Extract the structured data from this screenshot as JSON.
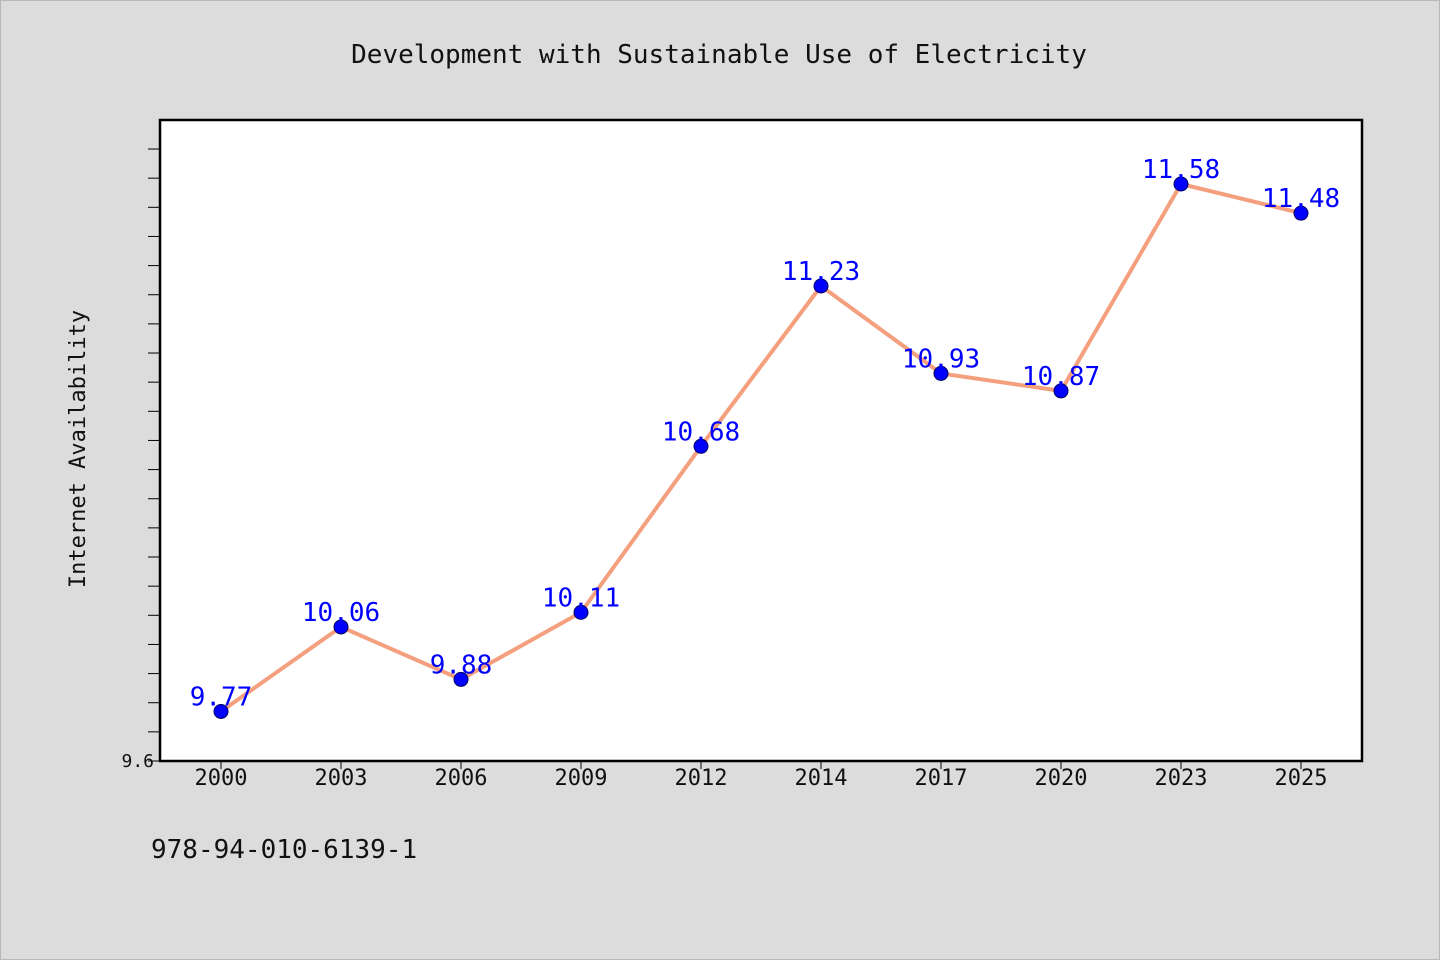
{
  "footnote": "978-94-010-6139-1",
  "chart_data": {
    "type": "line",
    "title": "Development with Sustainable Use of Electricity",
    "xlabel": "",
    "ylabel": "Internet Availability",
    "categories": [
      "2000",
      "2003",
      "2006",
      "2009",
      "2012",
      "2014",
      "2017",
      "2020",
      "2023",
      "2025"
    ],
    "series": [
      {
        "values": [
          9.77,
          10.06,
          9.88,
          10.11,
          10.68,
          11.23,
          10.93,
          10.87,
          11.58,
          11.48
        ],
        "labels": [
          "9.77",
          "10.06",
          "9.88",
          "10.11",
          "10.68",
          "11.23",
          "10.93",
          "10.87",
          "11.58",
          "11.48"
        ],
        "line_color": "#f4a07e",
        "marker_color": "#0000ff"
      }
    ],
    "ylim": [
      9.6,
      11.8
    ],
    "y_tick_labels": [
      {
        "value": 9.6,
        "label": "9.6"
      }
    ],
    "y_minor_step": 0.1,
    "grid": false,
    "legend": "none",
    "background": "#dcdcdc",
    "plot_background": "#ffffff"
  }
}
